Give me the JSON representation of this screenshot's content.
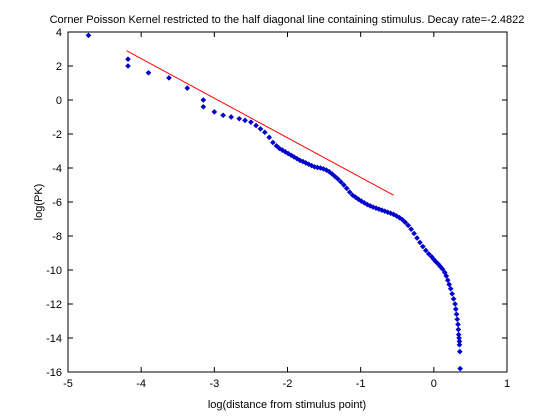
{
  "chart_data": {
    "type": "scatter",
    "title": "Corner Poisson Kernel restricted to the half diagonal line containing stimulus.  Decay rate=-2.4822",
    "xlabel": "log(distance from stimulus point)",
    "ylabel": "log(PK)",
    "xlim": [
      -5,
      1
    ],
    "ylim": [
      -16,
      4
    ],
    "xticks": [
      -5,
      -4,
      -3,
      -2,
      -1,
      0,
      1
    ],
    "yticks": [
      4,
      2,
      0,
      -2,
      -4,
      -6,
      -8,
      -10,
      -12,
      -14,
      -16
    ],
    "xtick_labels": [
      "-5",
      "-4",
      "-3",
      "-2",
      "-1",
      "0",
      "1"
    ],
    "ytick_labels": [
      "4",
      "2",
      "0",
      "-2",
      "-4",
      "-6",
      "-8",
      "-10",
      "-12",
      "-14",
      "-16"
    ],
    "grid": false,
    "series": [
      {
        "kind": "scatter",
        "color": "#0000cc",
        "marker": "diamond",
        "x": [
          -4.72,
          -4.18,
          -4.18,
          -3.9,
          -3.62,
          -3.37,
          -3.15,
          -3.15,
          -3.0,
          -2.88,
          -2.77,
          -2.66,
          -2.58,
          -2.5,
          -2.43,
          -2.37,
          -2.31,
          -2.25,
          -2.2,
          -2.15,
          -2.11,
          -2.07,
          -2.03,
          -1.99,
          -1.95,
          -1.91,
          -1.87,
          -1.83,
          -1.79,
          -1.75,
          -1.71,
          -1.67,
          -1.63,
          -1.59,
          -1.55,
          -1.51,
          -1.47,
          -1.43,
          -1.39,
          -1.35,
          -1.31,
          -1.27,
          -1.23,
          -1.19,
          -1.15,
          -1.11,
          -1.07,
          -1.03,
          -0.99,
          -0.95,
          -0.91,
          -0.87,
          -0.83,
          -0.79,
          -0.75,
          -0.71,
          -0.67,
          -0.63,
          -0.59,
          -0.55,
          -0.51,
          -0.47,
          -0.43,
          -0.39,
          -0.35,
          -0.31,
          -0.27,
          -0.23,
          -0.19,
          -0.15,
          -0.11,
          -0.07,
          -0.03,
          0.0,
          0.03,
          0.06,
          0.09,
          0.12,
          0.15,
          0.17,
          0.19,
          0.21,
          0.23,
          0.25,
          0.27,
          0.29,
          0.3,
          0.31,
          0.32,
          0.33,
          0.335,
          0.34,
          0.345,
          0.35,
          0.35,
          0.355,
          0.36
        ],
        "y": [
          3.8,
          2.4,
          2.0,
          1.6,
          1.3,
          0.7,
          0.0,
          -0.4,
          -0.7,
          -0.9,
          -1.0,
          -1.1,
          -1.2,
          -1.3,
          -1.5,
          -1.7,
          -1.9,
          -2.2,
          -2.5,
          -2.7,
          -2.85,
          -2.95,
          -3.05,
          -3.15,
          -3.25,
          -3.35,
          -3.45,
          -3.55,
          -3.62,
          -3.7,
          -3.78,
          -3.86,
          -3.93,
          -3.97,
          -4.0,
          -4.05,
          -4.12,
          -4.22,
          -4.35,
          -4.5,
          -4.65,
          -4.82,
          -5.0,
          -5.2,
          -5.42,
          -5.6,
          -5.72,
          -5.84,
          -5.95,
          -6.05,
          -6.15,
          -6.23,
          -6.3,
          -6.36,
          -6.42,
          -6.48,
          -6.54,
          -6.6,
          -6.66,
          -6.73,
          -6.82,
          -6.92,
          -7.04,
          -7.2,
          -7.38,
          -7.6,
          -7.85,
          -8.12,
          -8.38,
          -8.62,
          -8.85,
          -9.05,
          -9.22,
          -9.38,
          -9.52,
          -9.65,
          -9.8,
          -9.95,
          -10.15,
          -10.35,
          -10.6,
          -10.85,
          -11.1,
          -11.4,
          -11.7,
          -12.0,
          -12.3,
          -12.6,
          -12.9,
          -13.2,
          -13.5,
          -13.8,
          -14.0,
          -14.2,
          -14.4,
          -14.8,
          -15.8
        ]
      },
      {
        "kind": "line",
        "color": "#ff0000",
        "x": [
          -4.2,
          -0.55
        ],
        "y": [
          2.9,
          -5.6
        ]
      }
    ]
  }
}
